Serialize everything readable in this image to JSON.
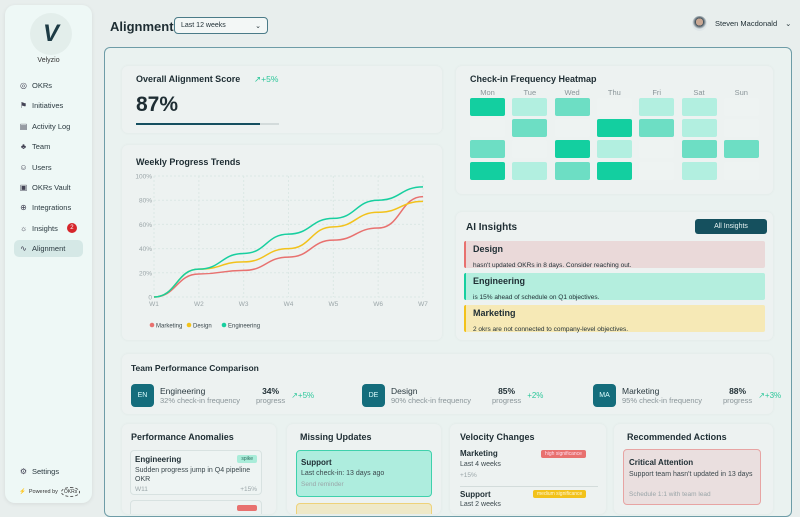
{
  "sidebar": {
    "brand": "Velyzio",
    "items": [
      {
        "label": "OKRs",
        "icon": "target-icon"
      },
      {
        "label": "Initiatives",
        "icon": "runner-icon"
      },
      {
        "label": "Activity Log",
        "icon": "log-icon"
      },
      {
        "label": "Team",
        "icon": "team-icon"
      },
      {
        "label": "Users",
        "icon": "users-icon"
      },
      {
        "label": "OKRs Vault",
        "icon": "vault-icon"
      },
      {
        "label": "Integrations",
        "icon": "globe-icon"
      },
      {
        "label": "Insights",
        "icon": "bulb-icon",
        "badge": "2"
      },
      {
        "label": "Alignment",
        "icon": "chart-icon",
        "active": true
      }
    ],
    "settings": "Settings",
    "powered_by": "Powered by",
    "powered_logo": "OKRs"
  },
  "header": {
    "title": "Alignment",
    "period": "Last 12 weeks",
    "user": "Steven Macdonald"
  },
  "score": {
    "title": "Overall Alignment Score",
    "change": "+5%",
    "value": "87%",
    "progress": 87
  },
  "chart_data": {
    "type": "line",
    "title": "Weekly Progress Trends",
    "categories": [
      "W1",
      "W2",
      "W3",
      "W4",
      "W5",
      "W6",
      "W7"
    ],
    "yticks": [
      "0",
      "20%",
      "40%",
      "60%",
      "80%",
      "100%"
    ],
    "ylim": [
      0,
      100
    ],
    "grid": true,
    "legend": "bottom-left",
    "series": [
      {
        "name": "Marketing",
        "color": "#e8716f",
        "values": [
          0,
          19,
          22,
          33,
          47,
          57,
          83
        ]
      },
      {
        "name": "Design",
        "color": "#f2c21b",
        "values": [
          0,
          23,
          29,
          40,
          58,
          70,
          79
        ]
      },
      {
        "name": "Engineering",
        "color": "#17cf9f",
        "values": [
          0,
          23,
          36,
          52,
          65,
          80,
          91
        ]
      }
    ]
  },
  "heatmap": {
    "title": "Check-in Frequency Heatmap",
    "days": [
      "Mon",
      "Tue",
      "Wed",
      "Thu",
      "Fri",
      "Sat",
      "Sun"
    ],
    "levels": [
      [
        3,
        1,
        2,
        0,
        1,
        1,
        0
      ],
      [
        0,
        2,
        0,
        3,
        2,
        1,
        0
      ],
      [
        2,
        0,
        3,
        1,
        0,
        2,
        2
      ],
      [
        3,
        1,
        2,
        3,
        0,
        1,
        0
      ]
    ],
    "colors": [
      "#eef3f2",
      "#b2efe0",
      "#6ddec4",
      "#13cfa0"
    ]
  },
  "ai": {
    "title": "AI Insights",
    "button": "All Insights",
    "items": [
      {
        "team": "Design",
        "text": "hasn't updated OKRs in 8 days. Consider reaching out.",
        "bg": "#ead9d9",
        "border": "#e8716f"
      },
      {
        "team": "Engineering",
        "text": "is 15% ahead of schedule on Q1 objectives.",
        "bg": "#b4eede",
        "border": "#17cf9f"
      },
      {
        "team": "Marketing",
        "text": "2 okrs are not connected to company-level objectives.",
        "bg": "#f6e9b6",
        "border": "#f2c21b"
      }
    ]
  },
  "teams": {
    "title": "Team Performance Comparison",
    "progress_label": "progress",
    "items": [
      {
        "initials": "EN",
        "name": "Engineering",
        "freq": "32% check-in frequency",
        "progress": "34%",
        "change": "+5%",
        "arrow": true
      },
      {
        "initials": "DE",
        "name": "Design",
        "freq": "90% check-in frequency",
        "progress": "85%",
        "change": "+2%",
        "arrow": false
      },
      {
        "initials": "MA",
        "name": "Marketing",
        "freq": "95% check-in frequency",
        "progress": "88%",
        "change": "+3%",
        "arrow": true
      }
    ]
  },
  "anomalies": {
    "title": "Performance Anomalies",
    "item": {
      "team": "Engineering",
      "tag": "spike",
      "text": "Sudden progress jump in Q4 pipeline OKR",
      "week": "W11",
      "change": "+15%"
    }
  },
  "missing": {
    "title": "Missing Updates",
    "item": {
      "team": "Support",
      "text": "Last check-in: 13 days ago",
      "action": "Send reminder"
    }
  },
  "velocity": {
    "title": "Velocity Changes",
    "items": [
      {
        "team": "Marketing",
        "tag": "high significance",
        "period": "Last 4 weeks",
        "change": "+15%"
      },
      {
        "team": "Support",
        "tag": "medium significance",
        "period": "Last 2 weeks"
      }
    ]
  },
  "actions": {
    "title": "Recommended Actions",
    "item": {
      "title": "Critical Attention",
      "text": "Support team hasn't updated in 13 days",
      "action": "Schedule 1:1 with team lead"
    }
  }
}
